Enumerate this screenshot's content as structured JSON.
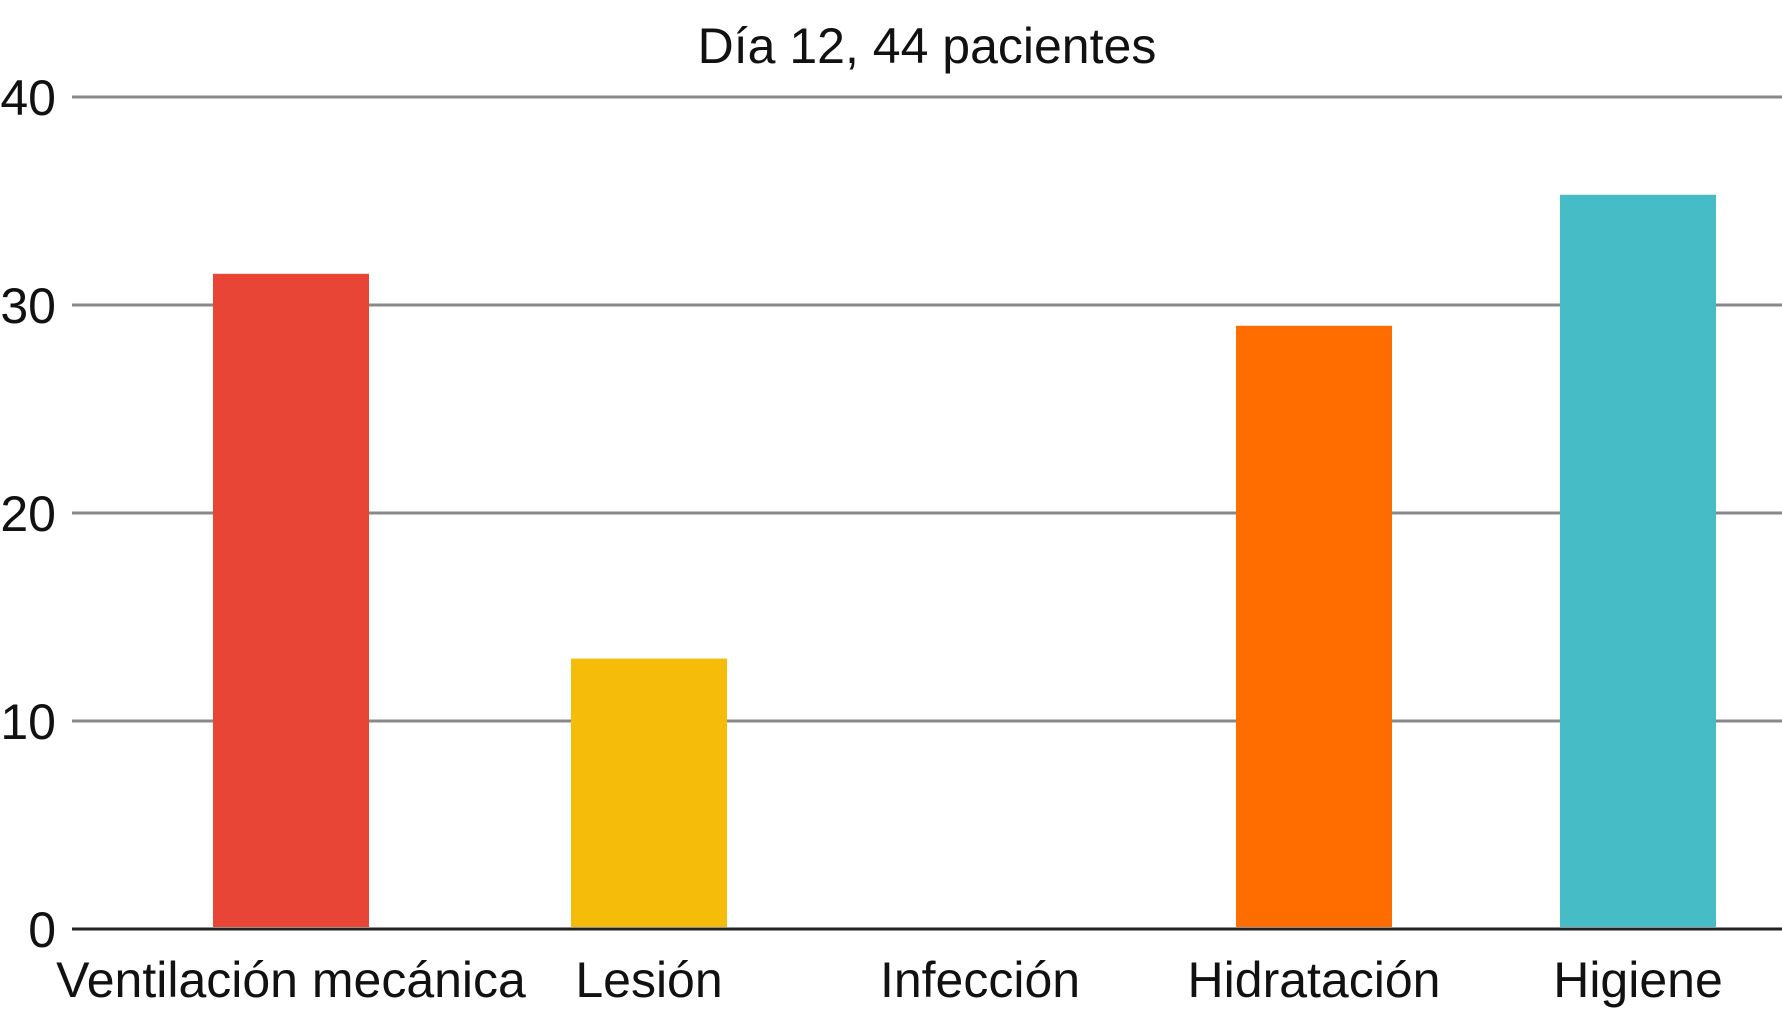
{
  "chart_data": {
    "type": "bar",
    "title": "Día 12, 44 pacientes",
    "xlabel": "",
    "ylabel": "",
    "categories": [
      "Ventilación mecánica",
      "Lesión",
      "Infección",
      "Hidratación",
      "Higiene"
    ],
    "values": [
      31.5,
      13,
      0,
      29,
      35.3
    ],
    "colors": [
      "#e94536",
      "#f6bc0a",
      "#cccccc",
      "#ff6d00",
      "#46bdc6"
    ],
    "ylim": [
      0,
      40
    ],
    "yticks": [
      0,
      10,
      20,
      30,
      40
    ],
    "ytick_labels": [
      "0",
      "10",
      "20",
      "30",
      "40"
    ],
    "grid": true,
    "grid_color": "#888888",
    "axis_color": "#222222"
  }
}
